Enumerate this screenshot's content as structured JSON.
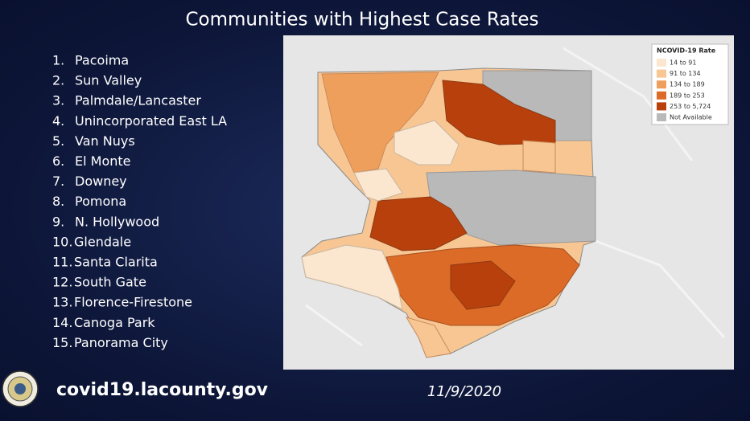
{
  "title": "Communities with Highest Case Rates",
  "communities": [
    {
      "number": "1.",
      "name": "Pacoima"
    },
    {
      "number": "2.",
      "name": "Sun Valley"
    },
    {
      "number": "3.",
      "name": "Palmdale/Lancaster"
    },
    {
      "number": "4.",
      "name": "Unincorporated East LA"
    },
    {
      "number": "5.",
      "name": "Van Nuys"
    },
    {
      "number": "6.",
      "name": "El Monte"
    },
    {
      "number": "7.",
      "name": "Downey"
    },
    {
      "number": "8.",
      "name": "Pomona"
    },
    {
      "number": "9.",
      "name": "N. Hollywood"
    },
    {
      "number": "10.",
      "name": "Glendale"
    },
    {
      "number": "11.",
      "name": "Santa Clarita"
    },
    {
      "number": "12.",
      "name": "South Gate"
    },
    {
      "number": "13.",
      "name": "Florence-Firestone"
    },
    {
      "number": "14.",
      "name": "Canoga Park"
    },
    {
      "number": "15.",
      "name": "Panorama City"
    }
  ],
  "map": {
    "legend": {
      "title": "NCOVID-19 Rate",
      "items": [
        {
          "label": "14 to 91",
          "color": "#fbe6cf"
        },
        {
          "label": "91 to 134",
          "color": "#f7c693"
        },
        {
          "label": "134 to 189",
          "color": "#ef9f5c"
        },
        {
          "label": "189 to 253",
          "color": "#dc6b28"
        },
        {
          "label": "253 to 5,724",
          "color": "#b7400d"
        },
        {
          "label": "Not Available",
          "color": "#b9b9b9"
        }
      ]
    }
  },
  "footer": {
    "url": "covid19.lacounty.gov",
    "date": "11/9/2020"
  }
}
